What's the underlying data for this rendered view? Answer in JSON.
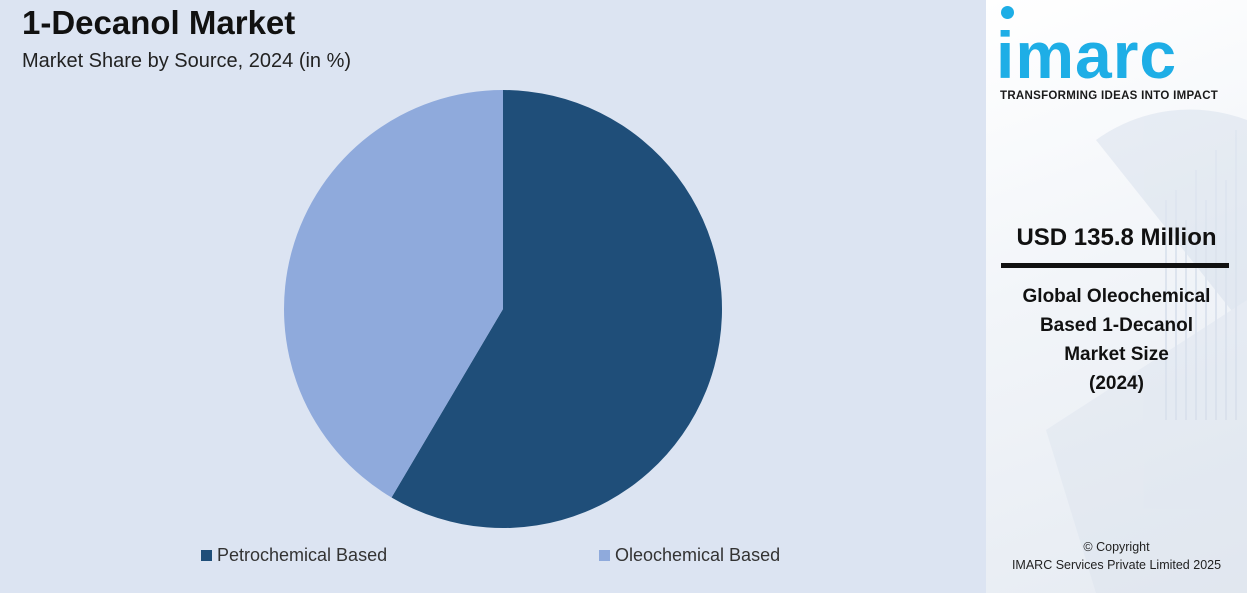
{
  "title": "1-Decanol Market",
  "subtitle": "Market Share by Source, 2024 (in %)",
  "chart_data": {
    "type": "pie",
    "title": "1-Decanol Market",
    "subtitle": "Market Share by Source, 2024 (in %)",
    "categories": [
      "Petrochemical Based",
      "Oleochemical Based"
    ],
    "values": [
      58.5,
      41.5
    ],
    "colors": [
      "#1f4e79",
      "#8faadc"
    ],
    "start_angle": "12 o'clock",
    "direction": "clockwise",
    "legend": "bottom"
  },
  "sidebar": {
    "logo": "imarc",
    "tagline": "TRANSFORMING IDEAS INTO IMPACT",
    "market_value": "USD 135.8 Million",
    "market_desc": "Global Oleochemical\nBased 1-Decanol\nMarket Size\n(2024)",
    "copyright_line1": "© Copyright",
    "copyright_line2": "IMARC Services Private Limited 2025",
    "accent_color": "#1eaee6"
  }
}
